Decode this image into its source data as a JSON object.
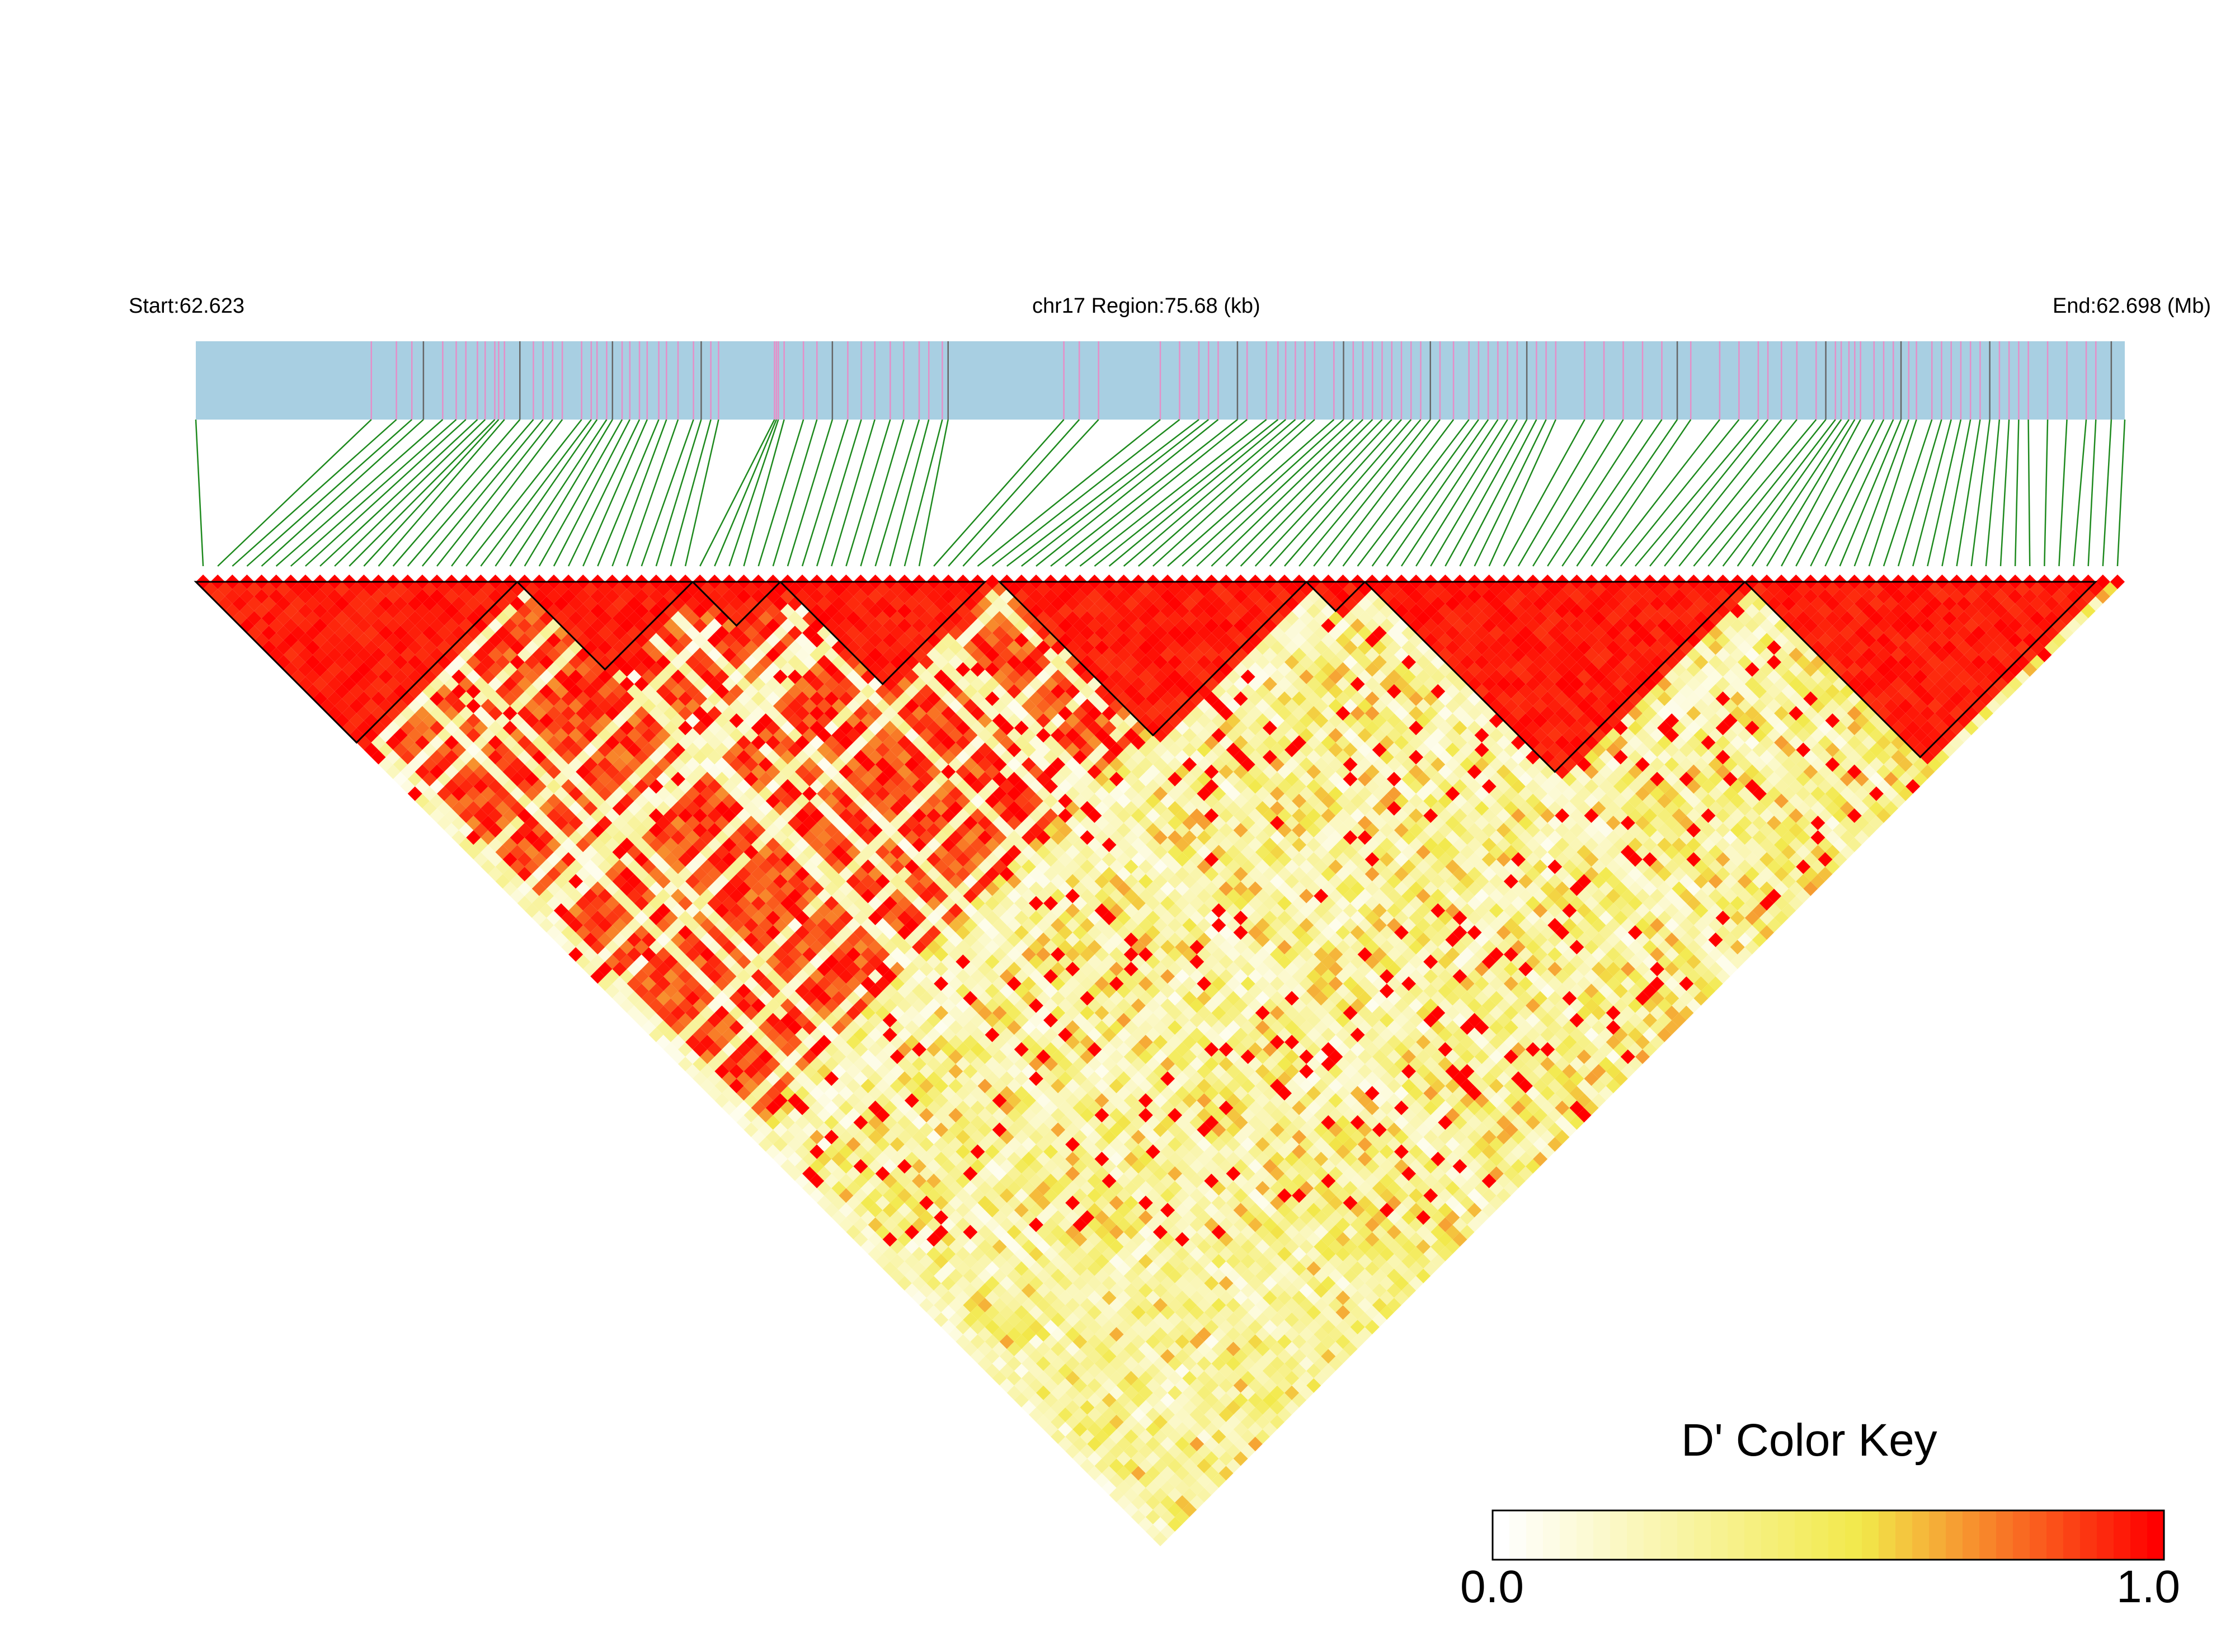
{
  "header": {
    "start_label": "Start:62.623",
    "region_label": "chr17 Region:75.68 (kb)",
    "end_label": "End:62.698 (Mb)"
  },
  "colors": {
    "track": "#a8cfe2",
    "snp_tick_a": "#e58fc8",
    "snp_tick_b": "#666666",
    "connector": "#1e8a1e",
    "ld_low": "#ffffff",
    "ld_mid": "#f2e94a",
    "ld_high": "#ff0000"
  },
  "chart_data": {
    "type": "heatmap",
    "title": "",
    "subtitle": "chr17 Region:75.68 (kb)",
    "measure": "D'",
    "region": {
      "chromosome": "chr17",
      "start_mb": 62.623,
      "end_mb": 62.698,
      "length_kb": 75.68
    },
    "snp_count": 132,
    "snp_positions_fraction": [
      0.0,
      0.091,
      0.104,
      0.112,
      0.118,
      0.128,
      0.135,
      0.14,
      0.146,
      0.15,
      0.155,
      0.157,
      0.16,
      0.168,
      0.175,
      0.18,
      0.185,
      0.19,
      0.2,
      0.205,
      0.208,
      0.213,
      0.216,
      0.221,
      0.225,
      0.23,
      0.234,
      0.24,
      0.244,
      0.25,
      0.258,
      0.262,
      0.267,
      0.271,
      0.3,
      0.301,
      0.302,
      0.305,
      0.315,
      0.322,
      0.33,
      0.338,
      0.345,
      0.352,
      0.36,
      0.367,
      0.375,
      0.38,
      0.387,
      0.39,
      0.45,
      0.458,
      0.468,
      0.5,
      0.51,
      0.52,
      0.525,
      0.53,
      0.54,
      0.545,
      0.555,
      0.561,
      0.565,
      0.57,
      0.575,
      0.58,
      0.59,
      0.595,
      0.6,
      0.605,
      0.61,
      0.615,
      0.62,
      0.625,
      0.63,
      0.635,
      0.64,
      0.645,
      0.652,
      0.66,
      0.665,
      0.67,
      0.675,
      0.68,
      0.685,
      0.69,
      0.695,
      0.7,
      0.705,
      0.72,
      0.73,
      0.74,
      0.75,
      0.76,
      0.768,
      0.775,
      0.79,
      0.8,
      0.81,
      0.815,
      0.822,
      0.83,
      0.84,
      0.845,
      0.85,
      0.853,
      0.857,
      0.86,
      0.863,
      0.87,
      0.875,
      0.88,
      0.884,
      0.888,
      0.892,
      0.9,
      0.905,
      0.91,
      0.915,
      0.92,
      0.925,
      0.93,
      0.935,
      0.94,
      0.945,
      0.95,
      0.96,
      0.97,
      0.98,
      0.985,
      0.993,
      1.0
    ],
    "haplotype_blocks": [
      [
        0,
        22
      ],
      [
        22,
        34
      ],
      [
        34,
        40
      ],
      [
        40,
        54
      ],
      [
        55,
        76
      ],
      [
        76,
        80
      ],
      [
        80,
        106
      ],
      [
        106,
        130
      ]
    ],
    "ld_matrix_note": "pairwise D' values between adjacent SNP pairs, approximated from color",
    "legend": {
      "title": "D' Color Key",
      "min": "0.0",
      "max": "1.0",
      "stops": [
        0.0,
        0.55,
        1.0
      ]
    }
  }
}
